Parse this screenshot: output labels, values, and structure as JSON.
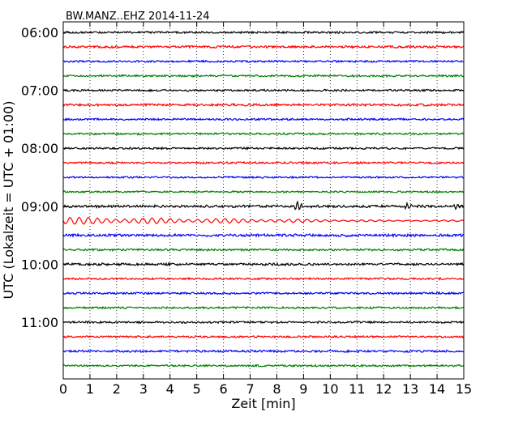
{
  "chart_data": {
    "type": "line",
    "title": "BW.MANZ..EHZ 2014-11-24",
    "xlabel": "Zeit  [min]",
    "ylabel": "UTC (Lokalzeit = UTC + 01:00)",
    "xlim": [
      0,
      15
    ],
    "x_ticks": [
      "0",
      "1",
      "2",
      "3",
      "4",
      "5",
      "6",
      "7",
      "8",
      "9",
      "10",
      "11",
      "12",
      "13",
      "14",
      "15"
    ],
    "y_ticks": [
      "06:00",
      "07:00",
      "08:00",
      "09:00",
      "10:00",
      "11:00"
    ],
    "grid": "vertical dotted",
    "colors": [
      "#000000",
      "#ff0000",
      "#0000ff",
      "#008000"
    ],
    "traces": [
      {
        "start": "06:00",
        "color": "#000000",
        "amplitude": 1.0
      },
      {
        "start": "06:15",
        "color": "#ff0000",
        "amplitude": 1.2
      },
      {
        "start": "06:30",
        "color": "#0000ff",
        "amplitude": 1.0
      },
      {
        "start": "06:45",
        "color": "#008000",
        "amplitude": 1.0
      },
      {
        "start": "07:00",
        "color": "#000000",
        "amplitude": 1.0
      },
      {
        "start": "07:15",
        "color": "#ff0000",
        "amplitude": 1.2
      },
      {
        "start": "07:30",
        "color": "#0000ff",
        "amplitude": 1.0
      },
      {
        "start": "07:45",
        "color": "#008000",
        "amplitude": 1.0
      },
      {
        "start": "08:00",
        "color": "#000000",
        "amplitude": 1.0
      },
      {
        "start": "08:15",
        "color": "#ff0000",
        "amplitude": 1.0
      },
      {
        "start": "08:30",
        "color": "#0000ff",
        "amplitude": 0.9
      },
      {
        "start": "08:45",
        "color": "#008000",
        "amplitude": 0.9
      },
      {
        "start": "09:00",
        "color": "#000000",
        "amplitude": 1.3,
        "events": [
          {
            "minute": 8.75,
            "amplitude": 7
          },
          {
            "minute": 12.9,
            "amplitude": 4
          },
          {
            "minute": 14.7,
            "amplitude": 3
          }
        ]
      },
      {
        "start": "09:15",
        "color": "#ff0000",
        "amplitude": 4.5,
        "decay": true
      },
      {
        "start": "09:30",
        "color": "#0000ff",
        "amplitude": 1.4
      },
      {
        "start": "09:45",
        "color": "#008000",
        "amplitude": 1.1
      },
      {
        "start": "10:00",
        "color": "#000000",
        "amplitude": 1.2
      },
      {
        "start": "10:15",
        "color": "#ff0000",
        "amplitude": 1.0
      },
      {
        "start": "10:30",
        "color": "#0000ff",
        "amplitude": 1.0
      },
      {
        "start": "10:45",
        "color": "#008000",
        "amplitude": 1.0
      },
      {
        "start": "11:00",
        "color": "#000000",
        "amplitude": 1.0
      },
      {
        "start": "11:15",
        "color": "#ff0000",
        "amplitude": 1.0
      },
      {
        "start": "11:30",
        "color": "#0000ff",
        "amplitude": 1.1
      },
      {
        "start": "11:45",
        "color": "#008000",
        "amplitude": 1.0
      }
    ]
  }
}
